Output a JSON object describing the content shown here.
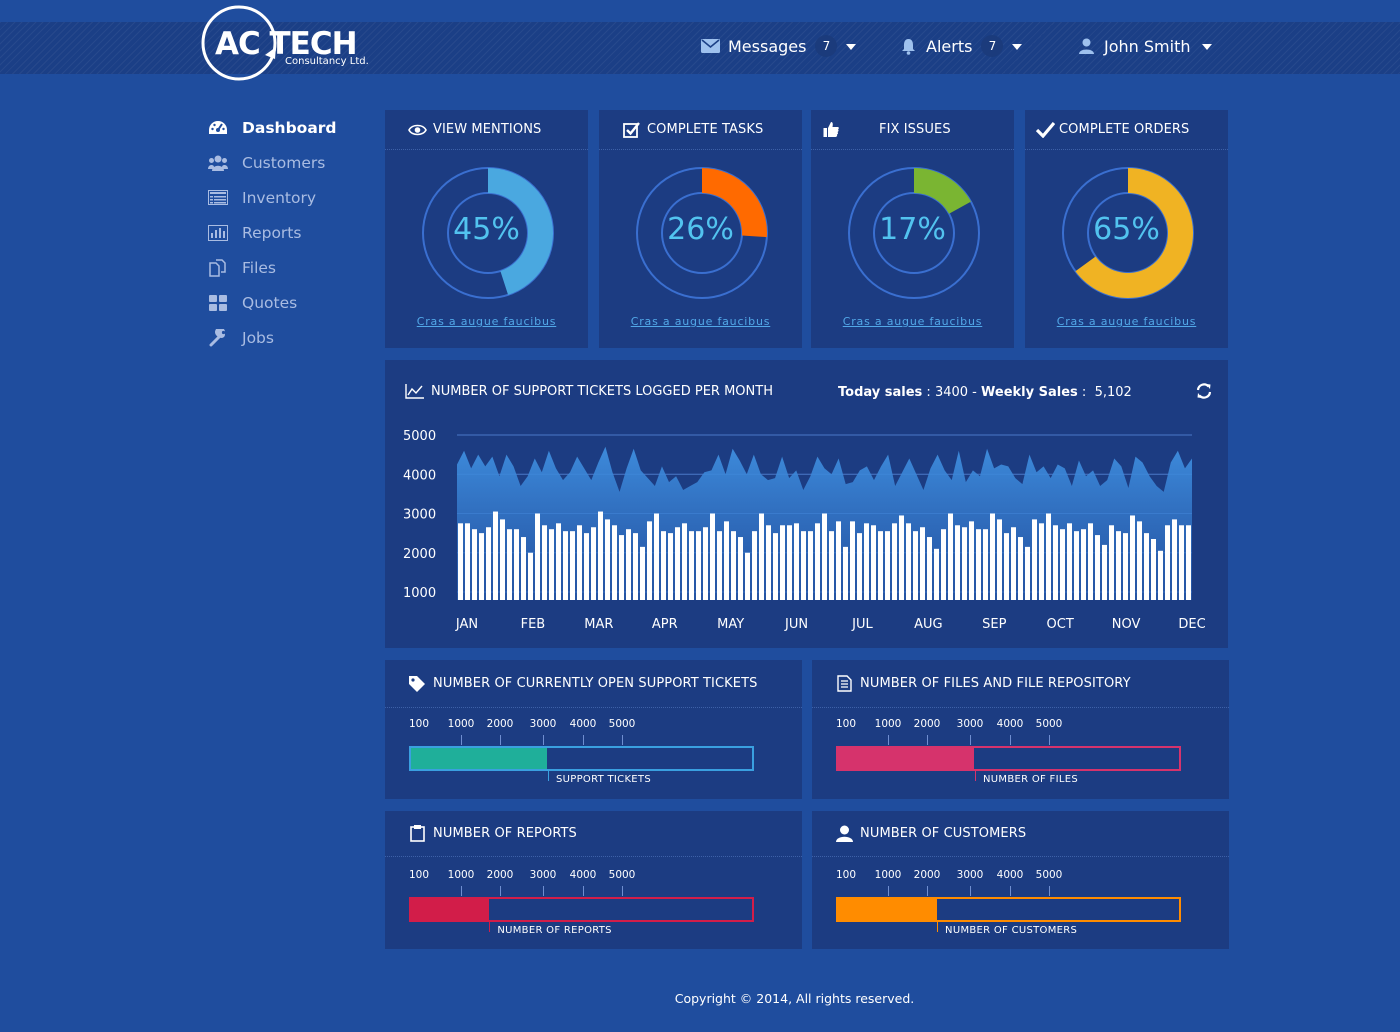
{
  "brand": {
    "logo_main": "AC TECH",
    "logo_sub": "Consultancy Ltd."
  },
  "topnav": {
    "messages": {
      "label": "Messages",
      "count": "7",
      "icon": "envelope-icon"
    },
    "alerts": {
      "label": "Alerts",
      "count": "7",
      "icon": "bell-icon"
    },
    "user": {
      "label": "John Smith",
      "icon": "user-icon"
    }
  },
  "sidebar": {
    "items": [
      {
        "label": "Dashboard",
        "icon": "dashboard-icon",
        "active": true
      },
      {
        "label": "Customers",
        "icon": "users-icon",
        "active": false
      },
      {
        "label": "Inventory",
        "icon": "inventory-icon",
        "active": false
      },
      {
        "label": "Reports",
        "icon": "bar-chart-icon",
        "active": false
      },
      {
        "label": "Files",
        "icon": "files-icon",
        "active": false
      },
      {
        "label": "Quotes",
        "icon": "grid-icon",
        "active": false
      },
      {
        "label": "Jobs",
        "icon": "wrench-icon",
        "active": false
      }
    ]
  },
  "kpis": [
    {
      "title": "VIEW MENTIONS",
      "icon": "eye-icon",
      "percent": 45,
      "percent_label": "45%",
      "color": "#4aa8e0",
      "link": "Cras a augue faucibus"
    },
    {
      "title": "COMPLETE TASKS",
      "icon": "checkbox-icon",
      "percent": 26,
      "percent_label": "26%",
      "color": "#ff6a00",
      "link": "Cras a augue faucibus"
    },
    {
      "title": "FIX ISSUES",
      "icon": "thumbs-up-icon",
      "percent": 17,
      "percent_label": "17%",
      "color": "#7ab532",
      "link": "Cras a augue faucibus"
    },
    {
      "title": "COMPLETE ORDERS",
      "icon": "check-icon",
      "percent": 65,
      "percent_label": "65%",
      "color": "#f0b323",
      "link": "Cras a augue faucibus"
    }
  ],
  "tickets_chart": {
    "title": "NUMBER OF SUPPORT TICKETS LOGGED PER MONTH",
    "today_sales_label": "Today sales",
    "today_sales_value": "3400",
    "separator": "-",
    "weekly_sales_label": "Weekly Sales",
    "weekly_sales_value": "5,102"
  },
  "chart_data": {
    "type": "bar",
    "y_ticks": [
      "5000",
      "4000",
      "3000",
      "2000",
      "1000"
    ],
    "ylim": [
      1000,
      5000
    ],
    "months": [
      "JAN",
      "FEB",
      "MAR",
      "APR",
      "MAY",
      "JUN",
      "JUL",
      "AUG",
      "SEP",
      "OCT",
      "NOV",
      "DEC"
    ],
    "series": [
      {
        "type": "bar",
        "values": [
          2750,
          2750,
          2600,
          2500,
          2650,
          3050,
          2850,
          2600,
          2600,
          2400,
          2000,
          3000,
          2700,
          2600,
          2750,
          2550,
          2550,
          2700,
          2500,
          2650,
          3050,
          2850,
          2700,
          2450,
          2600,
          2500,
          2150,
          2800,
          3000,
          2550,
          2500,
          2650,
          2750,
          2550,
          2550,
          2650,
          3000,
          2550,
          2800,
          2550,
          2400,
          2000,
          2550,
          3000,
          2700,
          2500,
          2700,
          2700,
          2750,
          2550,
          2550,
          2750,
          3000,
          2550,
          2800,
          2150,
          2800,
          2500,
          2750,
          2700,
          2550,
          2550,
          2750,
          2950,
          2750,
          2550,
          2650,
          2400,
          2100,
          2600,
          3000,
          2700,
          2650,
          2800,
          2600,
          2600,
          3000,
          2850,
          2500,
          2650,
          2400,
          2150,
          2850,
          2750,
          3000,
          2700,
          2600,
          2750,
          2550,
          2600,
          2750,
          2450,
          2200,
          2700,
          2550,
          2500,
          2950,
          2800,
          2500,
          2350,
          2050,
          2700,
          2850,
          2700,
          2700
        ]
      },
      {
        "type": "area",
        "values": [
          4250,
          4600,
          4150,
          4500,
          4200,
          4450,
          3950,
          4500,
          4200,
          3700,
          3950,
          4400,
          4050,
          4600,
          4150,
          3850,
          4050,
          4450,
          4150,
          3850,
          4300,
          4700,
          4050,
          3550,
          4150,
          4650,
          4100,
          3900,
          3700,
          4200,
          3800,
          3950,
          3600,
          3700,
          3800,
          4050,
          4100,
          4500,
          4000,
          4650,
          4350,
          4000,
          4500,
          4000,
          3850,
          3900,
          4450,
          3900,
          4100,
          3600,
          3950,
          4450,
          4150,
          4000,
          4400,
          3750,
          3800,
          4100,
          4200,
          3850,
          4200,
          4500,
          3700,
          4050,
          4400,
          4000,
          3600,
          4150,
          4500,
          4100,
          3850,
          4600,
          3800,
          4100,
          3950,
          4650,
          4150,
          4250,
          4200,
          3900,
          3750,
          4500,
          4050,
          4200,
          3900,
          4250,
          4150,
          3700,
          4350,
          3950,
          4100,
          3700,
          3850,
          4400,
          4200,
          3650,
          4450,
          4300,
          3950,
          3700,
          3550,
          4300,
          4600,
          4150,
          4400
        ]
      }
    ],
    "grid": true
  },
  "gauges": [
    {
      "title": "NUMBER OF CURRENTLY OPEN SUPPORT TICKETS",
      "icon": "tag-icon",
      "caption": "SUPPORT TICKETS",
      "ticks": [
        "100",
        "1000",
        "2000",
        "3000",
        "4000",
        "5000"
      ],
      "fill_fraction": 0.4,
      "fill_color": "#1faf9a",
      "border_color": "#3aa0e0"
    },
    {
      "title": "NUMBER OF FILES AND FILE REPOSITORY",
      "icon": "document-icon",
      "caption": "NUMBER OF FILES",
      "ticks": [
        "100",
        "1000",
        "2000",
        "3000",
        "4000",
        "5000"
      ],
      "fill_fraction": 0.4,
      "fill_color": "#d6336c",
      "border_color": "#d6336c"
    },
    {
      "title": "NUMBER OF REPORTS",
      "icon": "clipboard-icon",
      "caption": "NUMBER OF REPORTS",
      "ticks": [
        "100",
        "1000",
        "2000",
        "3000",
        "4000",
        "5000"
      ],
      "fill_fraction": 0.23,
      "fill_color": "#d21d49",
      "border_color": "#d21d49"
    },
    {
      "title": "NUMBER OF CUSTOMERS",
      "icon": "person-icon",
      "caption": "NUMBER OF CUSTOMERS",
      "ticks": [
        "100",
        "1000",
        "2000",
        "3000",
        "4000",
        "5000"
      ],
      "fill_fraction": 0.29,
      "fill_color": "#ff8c00",
      "border_color": "#ff8c00"
    }
  ],
  "footer": {
    "text": "Copyright © 2014, All rights reserved."
  }
}
